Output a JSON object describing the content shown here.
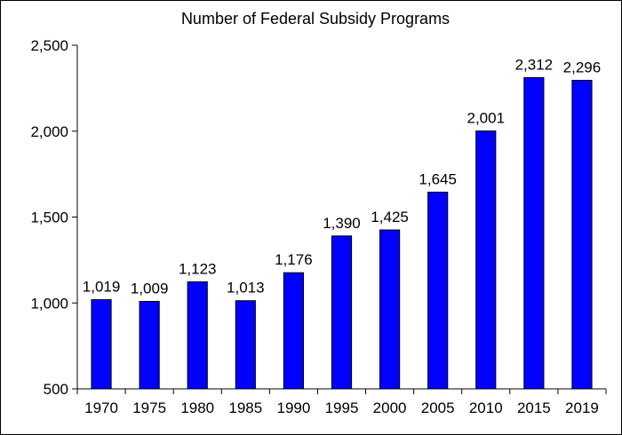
{
  "chart_data": {
    "type": "bar",
    "title": "Number of Federal Subsidy Programs",
    "categories": [
      "1970",
      "1975",
      "1980",
      "1985",
      "1990",
      "1995",
      "2000",
      "2005",
      "2010",
      "2015",
      "2019"
    ],
    "values": [
      1019,
      1009,
      1123,
      1013,
      1176,
      1390,
      1425,
      1645,
      2001,
      2312,
      2296
    ],
    "data_labels": [
      "1,019",
      "1,009",
      "1,123",
      "1,013",
      "1,176",
      "1,390",
      "1,425",
      "1,645",
      "2,001",
      "2,312",
      "2,296"
    ],
    "xlabel": "",
    "ylabel": "",
    "ylim": [
      500,
      2500
    ],
    "yticks": [
      500,
      1000,
      1500,
      2000,
      2500
    ],
    "ytick_labels": [
      "500",
      "1,000",
      "1,500",
      "2,000",
      "2,500"
    ],
    "grid": false,
    "legend": "none",
    "bar_color": "#0000ff",
    "bar_edge_color": "#000000"
  }
}
